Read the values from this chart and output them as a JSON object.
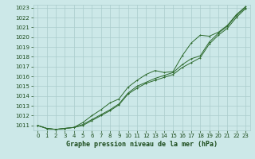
{
  "xlabel": "Graphe pression niveau de la mer (hPa)",
  "x": [
    0,
    1,
    2,
    3,
    4,
    5,
    6,
    7,
    8,
    9,
    10,
    11,
    12,
    13,
    14,
    15,
    16,
    17,
    18,
    19,
    20,
    21,
    22,
    23
  ],
  "line1": [
    1011.0,
    1010.7,
    1010.6,
    1010.7,
    1010.8,
    1011.1,
    1011.6,
    1012.1,
    1012.6,
    1013.2,
    1014.3,
    1015.0,
    1015.4,
    1015.8,
    1016.1,
    1016.4,
    1017.2,
    1017.8,
    1018.1,
    1019.5,
    1020.4,
    1021.1,
    1022.2,
    1023.0
  ],
  "line2": [
    1011.0,
    1010.7,
    1010.6,
    1010.7,
    1010.8,
    1011.3,
    1012.0,
    1012.6,
    1013.3,
    1013.7,
    1014.9,
    1015.6,
    1016.2,
    1016.6,
    1016.4,
    1016.5,
    1018.1,
    1019.4,
    1020.2,
    1020.1,
    1020.5,
    1021.2,
    1022.3,
    1023.1
  ],
  "line3": [
    1011.0,
    1010.7,
    1010.6,
    1010.7,
    1010.8,
    1011.0,
    1011.5,
    1012.0,
    1012.5,
    1013.1,
    1014.2,
    1014.8,
    1015.3,
    1015.6,
    1015.9,
    1016.2,
    1016.9,
    1017.4,
    1017.9,
    1019.3,
    1020.2,
    1020.9,
    1022.0,
    1022.9
  ],
  "line_color": "#2d6a2d",
  "bg_color": "#cce8e8",
  "grid_color": "#aacccc",
  "ylim_min": 1011,
  "ylim_max": 1023,
  "yticks": [
    1011,
    1012,
    1013,
    1014,
    1015,
    1016,
    1017,
    1018,
    1019,
    1020,
    1021,
    1022,
    1023
  ],
  "xticks": [
    0,
    1,
    2,
    3,
    4,
    5,
    6,
    7,
    8,
    9,
    10,
    11,
    12,
    13,
    14,
    15,
    16,
    17,
    18,
    19,
    20,
    21,
    22,
    23
  ],
  "markersize": 2.0,
  "linewidth": 0.7,
  "tick_fontsize": 5.0,
  "xlabel_fontsize": 6.0,
  "label_color": "#1a4a1a"
}
